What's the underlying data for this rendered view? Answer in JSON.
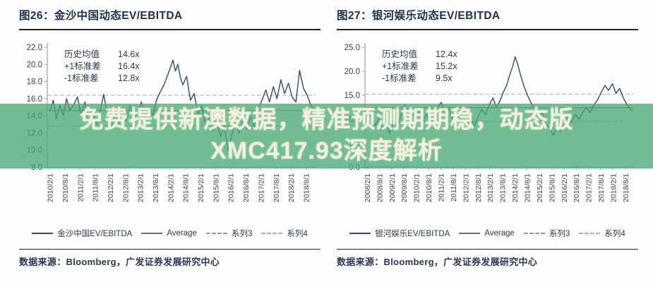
{
  "overlay": {
    "text": "免费提供新澳数据，精准预测期期稳，动态版XMC417.93深度解析",
    "band_color": "rgba(73,169,117,0.78)",
    "text_color": "#f7f1dc"
  },
  "panels": [
    {
      "title": "图26：金沙中国动态EV/EBITDA",
      "stats": [
        {
          "label": "历史均值",
          "value": "14.6x"
        },
        {
          "label": "+1标准差",
          "value": "16.4x"
        },
        {
          "label": "-1标准差",
          "value": "12.8x"
        }
      ],
      "legend": [
        {
          "label": "金沙中国EV/EBITDA",
          "line": "solid",
          "color": "#2e4a7a"
        },
        {
          "label": "Average",
          "line": "solid",
          "color": "#5f738c"
        },
        {
          "label": "系列3",
          "line": "dashed",
          "color": "#8c99aa"
        },
        {
          "label": "系列4",
          "line": "dashed",
          "color": "#a8b1bd"
        }
      ],
      "source": "数据来源：Bloomberg，广发证券发展研究中心"
    },
    {
      "title": "图27：银河娱乐动态EV/EBITDA",
      "stats": [
        {
          "label": "历史均值",
          "value": "12.4x"
        },
        {
          "label": "+1标准差",
          "value": "15.2x"
        },
        {
          "label": "-1标准差",
          "value": "9.5x"
        }
      ],
      "legend": [
        {
          "label": "银河娱乐EV/EBITDA",
          "line": "solid",
          "color": "#2e4a7a"
        },
        {
          "label": "Average",
          "line": "solid",
          "color": "#5f738c"
        },
        {
          "label": "系列3",
          "line": "dashed",
          "color": "#8c99aa"
        },
        {
          "label": "系列4",
          "line": "dashed",
          "color": "#a8b1bd"
        }
      ],
      "source": "数据来源：Bloomberg，广发证券发展研究中心"
    }
  ],
  "chart_data": [
    {
      "type": "line",
      "title": "金沙中国动态EV/EBITDA",
      "ylabel": "EV/EBITDA (x)",
      "ylim": [
        8,
        22
      ],
      "yticks": [
        22,
        20,
        18,
        16,
        14,
        12,
        10,
        8
      ],
      "xlim": [
        2010.0,
        2018.9
      ],
      "xtick_labels": [
        "2010/2/1",
        "2010/8/1",
        "2011/2/1",
        "2011/8/1",
        "2012/2/1",
        "2012/8/1",
        "2013/2/1",
        "2013/8/1",
        "2014/2/1",
        "2014/8/1",
        "2015/2/1",
        "2015/8/1",
        "2016/2/1",
        "2016/8/1",
        "2017/2/1",
        "2017/8/1",
        "2018/2/1",
        "2018/8/1"
      ],
      "mean": 14.6,
      "plus1sd": 16.4,
      "minus1sd": 12.8,
      "line_color": "#2e4a7a",
      "ref_color": "#7d8b9d",
      "sd_color": "#a5aeba",
      "legend_position": "bottom",
      "grid": false,
      "series": [
        {
          "name": "金沙中国EV/EBITDA",
          "x": [
            2010.08,
            2010.2,
            2010.3,
            2010.42,
            2010.53,
            2010.64,
            2010.75,
            2010.9,
            2011.0,
            2011.12,
            2011.25,
            2011.37,
            2011.5,
            2011.62,
            2011.75,
            2011.87,
            2012.0,
            2012.12,
            2012.25,
            2012.37,
            2012.5,
            2012.62,
            2012.75,
            2012.87,
            2013.0,
            2013.12,
            2013.25,
            2013.37,
            2013.5,
            2013.62,
            2013.75,
            2013.87,
            2014.0,
            2014.08,
            2014.17,
            2014.25,
            2014.33,
            2014.42,
            2014.5,
            2014.62,
            2014.75,
            2014.87,
            2015.0,
            2015.12,
            2015.25,
            2015.37,
            2015.5,
            2015.62,
            2015.75,
            2015.87,
            2016.0,
            2016.12,
            2016.25,
            2016.37,
            2016.5,
            2016.62,
            2016.75,
            2016.87,
            2017.0,
            2017.12,
            2017.25,
            2017.37,
            2017.5,
            2017.62,
            2017.75,
            2017.87,
            2018.0,
            2018.12,
            2018.25,
            2018.37,
            2018.5,
            2018.62,
            2018.75,
            2018.85
          ],
          "y": [
            14.5,
            15.8,
            13.6,
            15.2,
            14.0,
            16.0,
            14.6,
            15.4,
            16.2,
            14.0,
            15.6,
            13.2,
            14.8,
            12.9,
            14.4,
            16.5,
            14.0,
            12.6,
            14.6,
            13.0,
            14.9,
            13.4,
            15.2,
            13.8,
            14.2,
            15.6,
            13.6,
            15.0,
            14.0,
            15.8,
            16.8,
            17.6,
            18.8,
            19.6,
            20.5,
            19.2,
            20.0,
            18.4,
            17.6,
            18.6,
            15.8,
            16.6,
            14.2,
            15.2,
            12.8,
            13.8,
            12.2,
            13.2,
            11.6,
            12.8,
            9.9,
            11.8,
            13.4,
            12.0,
            13.6,
            12.4,
            13.9,
            12.6,
            14.8,
            15.8,
            17.0,
            15.6,
            17.4,
            16.0,
            18.2,
            16.6,
            17.8,
            16.2,
            15.6,
            19.3,
            17.2,
            16.4,
            15.2,
            14.6
          ]
        }
      ]
    },
    {
      "type": "line",
      "title": "银河娱乐动态EV/EBITDA",
      "ylabel": "EV/EBITDA (x)",
      "ylim": [
        0,
        25
      ],
      "yticks": [
        25,
        20,
        15,
        10,
        5,
        0
      ],
      "xlim": [
        2008.0,
        2018.9
      ],
      "xtick_labels": [
        "2008/2/1",
        "2008/8/1",
        "2009/2/1",
        "2009/8/1",
        "2010/2/1",
        "2010/8/1",
        "2011/2/1",
        "2011/8/1",
        "2012/2/1",
        "2012/8/1",
        "2013/2/1",
        "2013/8/1",
        "2014/2/1",
        "2014/8/1",
        "2015/2/1",
        "2015/8/1",
        "2016/2/1",
        "2016/8/1",
        "2017/2/1",
        "2017/8/1",
        "2018/2/1",
        "2018/8/1"
      ],
      "mean": 12.4,
      "plus1sd": 15.2,
      "minus1sd": 9.5,
      "line_color": "#2e4a7a",
      "ref_color": "#7d8b9d",
      "sd_color": "#a5aeba",
      "legend_position": "bottom",
      "grid": false,
      "series": [
        {
          "name": "银河娱乐EV/EBITDA",
          "x": [
            2008.08,
            2008.25,
            2008.42,
            2008.58,
            2008.75,
            2008.9,
            2009.0,
            2009.17,
            2009.33,
            2009.5,
            2009.62,
            2009.75,
            2009.9,
            2010.05,
            2010.2,
            2010.35,
            2010.5,
            2010.65,
            2010.8,
            2010.95,
            2011.1,
            2011.25,
            2011.4,
            2011.55,
            2011.7,
            2011.85,
            2012.0,
            2012.15,
            2012.3,
            2012.45,
            2012.6,
            2012.75,
            2012.9,
            2013.05,
            2013.2,
            2013.35,
            2013.5,
            2013.62,
            2013.75,
            2013.87,
            2014.0,
            2014.1,
            2014.2,
            2014.3,
            2014.45,
            2014.6,
            2014.75,
            2014.9,
            2015.05,
            2015.2,
            2015.35,
            2015.5,
            2015.65,
            2015.8,
            2015.95,
            2016.1,
            2016.25,
            2016.4,
            2016.55,
            2016.7,
            2016.85,
            2017.0,
            2017.15,
            2017.3,
            2017.45,
            2017.6,
            2017.75,
            2017.9,
            2018.05,
            2018.2,
            2018.35,
            2018.5,
            2018.65,
            2018.85
          ],
          "y": [
            9.6,
            11.0,
            8.6,
            10.2,
            7.6,
            9.0,
            7.0,
            9.6,
            8.2,
            11.6,
            13.0,
            10.6,
            12.0,
            10.0,
            11.6,
            9.4,
            11.0,
            9.0,
            10.6,
            12.4,
            13.5,
            11.0,
            12.4,
            10.0,
            11.4,
            9.6,
            10.4,
            8.8,
            10.0,
            8.6,
            10.6,
            12.0,
            11.0,
            13.0,
            14.4,
            12.4,
            14.0,
            15.6,
            17.0,
            19.0,
            21.0,
            23.0,
            21.6,
            19.6,
            17.0,
            15.0,
            13.4,
            12.0,
            10.4,
            11.4,
            9.0,
            8.0,
            6.6,
            8.4,
            7.4,
            9.0,
            10.6,
            9.4,
            11.0,
            10.0,
            11.4,
            12.4,
            11.4,
            13.0,
            14.0,
            15.6,
            17.0,
            16.0,
            17.4,
            15.4,
            16.4,
            14.4,
            13.0,
            11.6
          ]
        }
      ]
    }
  ]
}
